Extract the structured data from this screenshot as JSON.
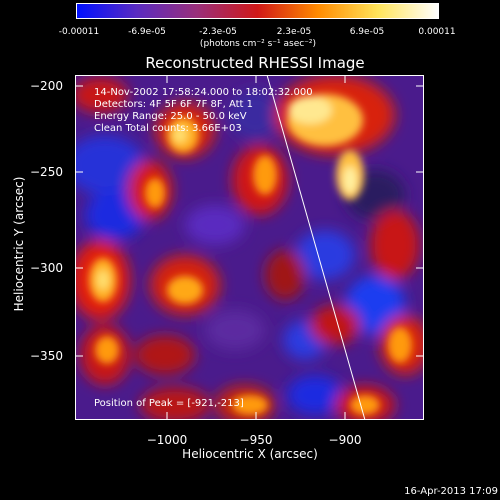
{
  "colorbar": {
    "tick_labels": [
      "-0.00011",
      "-6.9e-05",
      "-2.3e-05",
      "2.3e-05",
      "6.9e-05",
      "0.00011"
    ],
    "units": "(photons cm⁻² s⁻¹ asec⁻²)",
    "colors": [
      "#0010ff",
      "#5a2bc0",
      "#9a2f7a",
      "#d01818",
      "#ff8a00",
      "#ffe45a",
      "#ffffff"
    ]
  },
  "plot": {
    "title": "Reconstructed RHESSI Image",
    "xlabel": "Heliocentric X (arcsec)",
    "ylabel": "Heliocentric Y (arcsec)",
    "x_ticks": [
      "−1000",
      "−950",
      "−900"
    ],
    "y_ticks": [
      "−200",
      "−250",
      "−300",
      "−350"
    ],
    "info_lines": [
      "14-Nov-2002 17:58:24.000 to 18:02:32.000",
      "Detectors: 4F 5F 6F 7F 8F, Att 1",
      "Energy Range: 25.0 - 50.0 keV",
      "Clean    Total counts: 3.66E+03"
    ],
    "peak_text": "Position of Peak = [-921,-213]"
  },
  "footer": {
    "timestamp": "16-Apr-2013 17:09"
  }
}
